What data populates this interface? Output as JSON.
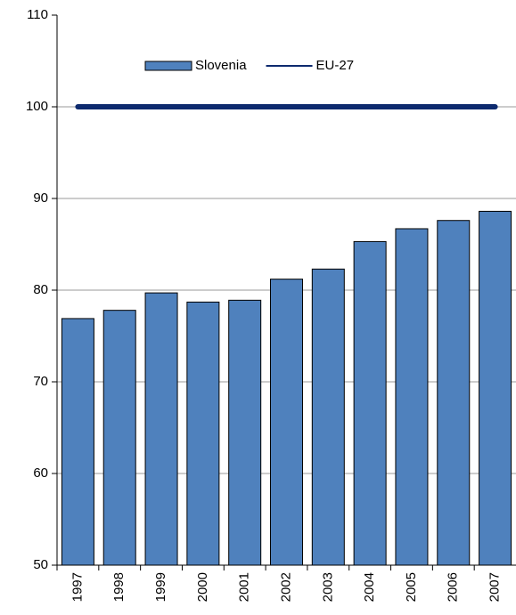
{
  "chart_data": {
    "type": "bar_line",
    "categories": [
      "1997",
      "1998",
      "1999",
      "2000",
      "2001",
      "2002",
      "2003",
      "2004",
      "2005",
      "2006",
      "2007"
    ],
    "series": [
      {
        "name": "Slovenia",
        "type": "bar",
        "color": "#4f81bd",
        "values": [
          76.9,
          77.8,
          79.7,
          78.7,
          78.9,
          81.2,
          82.3,
          85.3,
          86.7,
          87.6,
          88.6
        ]
      },
      {
        "name": "EU-27",
        "type": "line",
        "color": "#0d2a6e",
        "values": [
          100,
          100,
          100,
          100,
          100,
          100,
          100,
          100,
          100,
          100,
          100
        ]
      }
    ],
    "ylim": [
      50,
      110
    ],
    "yticks": [
      50,
      60,
      70,
      80,
      90,
      100,
      110
    ],
    "grid": true,
    "legend": "top"
  }
}
